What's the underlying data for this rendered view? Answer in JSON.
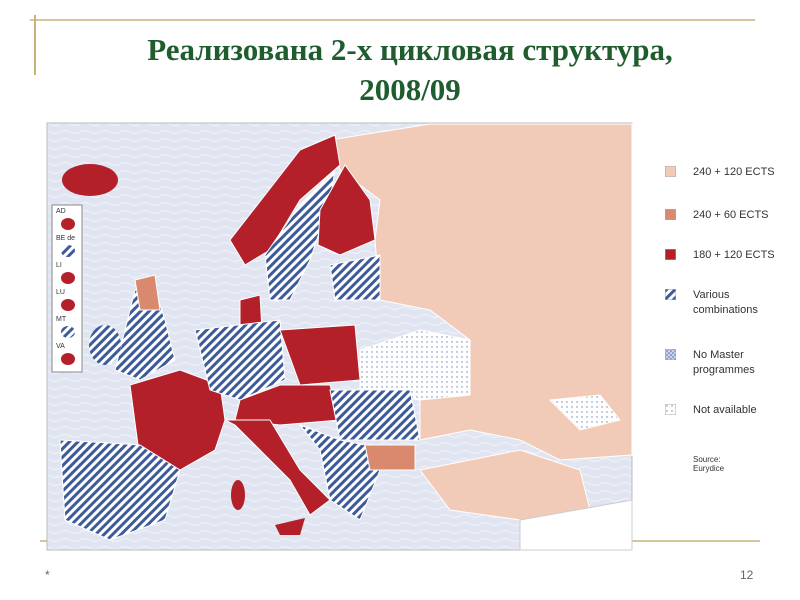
{
  "slide": {
    "title": [
      "Реализована 2-х цикловая структура,",
      "2008/09"
    ],
    "legend": [
      {
        "label": "240 + 120 ECTS"
      },
      {
        "label": "240 + 60 ECTS"
      },
      {
        "label": "180 + 120 ECTS"
      },
      {
        "label": "Various combinations"
      },
      {
        "label": "No Master programmes"
      },
      {
        "label": "Not available"
      }
    ],
    "source": "Source: Eurydice",
    "inset_labels": [
      "AD",
      "BE de",
      "LI",
      "LU",
      "MT",
      "VA"
    ],
    "footer_mark": "*",
    "page_number": "12"
  }
}
